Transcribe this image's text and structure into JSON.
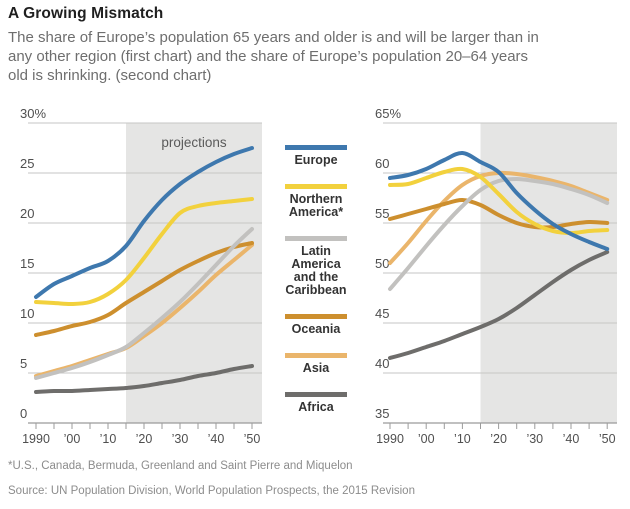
{
  "header": {
    "title": "A Growing Mismatch",
    "subtitle": "The share of Europe’s population 65 years and older is and will be larger than in\nany other region (first chart) and the share of Europe’s population 20–64 years\nold is shrinking. (second chart)"
  },
  "footnotes": {
    "note": "*U.S., Canada, Bermuda, Greenland and Saint Pierre and Miquelon",
    "source": "Source: UN Population Division, World Population Prospects, the 2015 Revision"
  },
  "style": {
    "projection_shade": "#e5e5e4",
    "gridline": "#c6c6c5",
    "axis": "#9b9b9b"
  },
  "legend": [
    {
      "name": "Europe",
      "display": "Europe",
      "color": "#3e78ae"
    },
    {
      "name": "Northern America",
      "display": "Northern\nAmerica*",
      "color": "#f2d13d"
    },
    {
      "name": "Latin America and the Caribbean",
      "display": "Latin\nAmerica\nand the\nCaribbean",
      "color": "#c2c1bf"
    },
    {
      "name": "Oceania",
      "display": "Oceania",
      "color": "#cd8f2e"
    },
    {
      "name": "Asia",
      "display": "Asia",
      "color": "#eab56b"
    },
    {
      "name": "Africa",
      "display": "Africa",
      "color": "#6e6d6b"
    }
  ],
  "chart_data": [
    {
      "type": "line",
      "description": "Share of population 65 years and older, percent",
      "ylim": [
        0,
        30
      ],
      "grid": true,
      "projection_start": 2015,
      "projection_label": "projections",
      "yticks": [
        {
          "value": 30,
          "label": "30%"
        },
        {
          "value": 25,
          "label": "25"
        },
        {
          "value": 20,
          "label": "20"
        },
        {
          "value": 15,
          "label": "15"
        },
        {
          "value": 10,
          "label": "10"
        },
        {
          "value": 5,
          "label": "5"
        },
        {
          "value": 0,
          "label": "0"
        }
      ],
      "x": [
        1990,
        1995,
        2000,
        2005,
        2010,
        2015,
        2020,
        2025,
        2030,
        2035,
        2040,
        2045,
        2050
      ],
      "xticks": [
        {
          "year": 1990,
          "label": "1990"
        },
        {
          "year": 1995,
          "label": ""
        },
        {
          "year": 2000,
          "label": "’00"
        },
        {
          "year": 2005,
          "label": ""
        },
        {
          "year": 2010,
          "label": "’10"
        },
        {
          "year": 2015,
          "label": ""
        },
        {
          "year": 2020,
          "label": "’20"
        },
        {
          "year": 2025,
          "label": ""
        },
        {
          "year": 2030,
          "label": "’30"
        },
        {
          "year": 2035,
          "label": ""
        },
        {
          "year": 2040,
          "label": "’40"
        },
        {
          "year": 2045,
          "label": ""
        },
        {
          "year": 2050,
          "label": "’50"
        }
      ],
      "series": [
        {
          "name": "Europe",
          "values": [
            12.6,
            13.9,
            14.7,
            15.5,
            16.2,
            17.7,
            20.2,
            22.3,
            23.9,
            25.1,
            26.1,
            26.9,
            27.5
          ]
        },
        {
          "name": "Northern America",
          "values": [
            12.1,
            12.0,
            11.9,
            12.1,
            12.9,
            14.3,
            16.5,
            18.9,
            21.0,
            21.7,
            22.0,
            22.2,
            22.4
          ]
        },
        {
          "name": "Latin America and the Caribbean",
          "values": [
            4.5,
            5.0,
            5.5,
            6.1,
            6.8,
            7.6,
            9.0,
            10.5,
            12.1,
            13.9,
            15.8,
            17.7,
            19.4
          ]
        },
        {
          "name": "Oceania",
          "values": [
            8.8,
            9.2,
            9.7,
            10.1,
            10.8,
            12.0,
            13.1,
            14.2,
            15.3,
            16.2,
            17.0,
            17.6,
            18.0
          ]
        },
        {
          "name": "Asia",
          "values": [
            4.7,
            5.2,
            5.7,
            6.3,
            6.9,
            7.5,
            8.7,
            10.0,
            11.5,
            13.1,
            14.8,
            16.3,
            17.8
          ]
        },
        {
          "name": "Africa",
          "values": [
            3.1,
            3.2,
            3.2,
            3.3,
            3.4,
            3.5,
            3.7,
            4.0,
            4.3,
            4.7,
            5.0,
            5.4,
            5.7
          ]
        }
      ]
    },
    {
      "type": "line",
      "description": "Share of population 20–64 years old, percent",
      "ylim": [
        35,
        65
      ],
      "grid": true,
      "projection_start": 2015,
      "projection_label": "",
      "yticks": [
        {
          "value": 65,
          "label": "65%"
        },
        {
          "value": 60,
          "label": "60"
        },
        {
          "value": 55,
          "label": "55"
        },
        {
          "value": 50,
          "label": "50"
        },
        {
          "value": 45,
          "label": "45"
        },
        {
          "value": 40,
          "label": "40"
        },
        {
          "value": 35,
          "label": "35"
        }
      ],
      "x": [
        1990,
        1995,
        2000,
        2005,
        2010,
        2015,
        2020,
        2025,
        2030,
        2035,
        2040,
        2045,
        2050
      ],
      "xticks": [
        {
          "year": 1990,
          "label": "1990"
        },
        {
          "year": 1995,
          "label": ""
        },
        {
          "year": 2000,
          "label": "’00"
        },
        {
          "year": 2005,
          "label": ""
        },
        {
          "year": 2010,
          "label": "’10"
        },
        {
          "year": 2015,
          "label": ""
        },
        {
          "year": 2020,
          "label": "’20"
        },
        {
          "year": 2025,
          "label": ""
        },
        {
          "year": 2030,
          "label": "’30"
        },
        {
          "year": 2035,
          "label": ""
        },
        {
          "year": 2040,
          "label": "’40"
        },
        {
          "year": 2045,
          "label": ""
        },
        {
          "year": 2050,
          "label": "’50"
        }
      ],
      "series": [
        {
          "name": "Europe",
          "values": [
            59.5,
            59.8,
            60.4,
            61.3,
            62.0,
            61.1,
            60.1,
            58.0,
            56.3,
            54.9,
            53.9,
            53.1,
            52.4
          ]
        },
        {
          "name": "Northern America",
          "values": [
            58.8,
            58.9,
            59.5,
            60.1,
            60.4,
            59.6,
            57.9,
            56.1,
            54.9,
            54.2,
            54.0,
            54.2,
            54.3
          ]
        },
        {
          "name": "Latin America and the Caribbean",
          "values": [
            48.4,
            50.5,
            52.7,
            54.8,
            56.7,
            58.3,
            59.2,
            59.4,
            59.2,
            58.9,
            58.4,
            57.8,
            57.0
          ]
        },
        {
          "name": "Oceania",
          "values": [
            55.4,
            55.9,
            56.4,
            56.9,
            57.3,
            56.8,
            55.8,
            55.0,
            54.6,
            54.6,
            54.9,
            55.1,
            55.0
          ]
        },
        {
          "name": "Asia",
          "values": [
            51.0,
            53.0,
            55.2,
            57.2,
            58.8,
            59.7,
            60.0,
            59.9,
            59.6,
            59.2,
            58.7,
            58.0,
            57.3
          ]
        },
        {
          "name": "Africa",
          "values": [
            41.5,
            42.0,
            42.6,
            43.2,
            43.9,
            44.6,
            45.4,
            46.5,
            47.8,
            49.1,
            50.3,
            51.3,
            52.1
          ]
        }
      ]
    }
  ]
}
